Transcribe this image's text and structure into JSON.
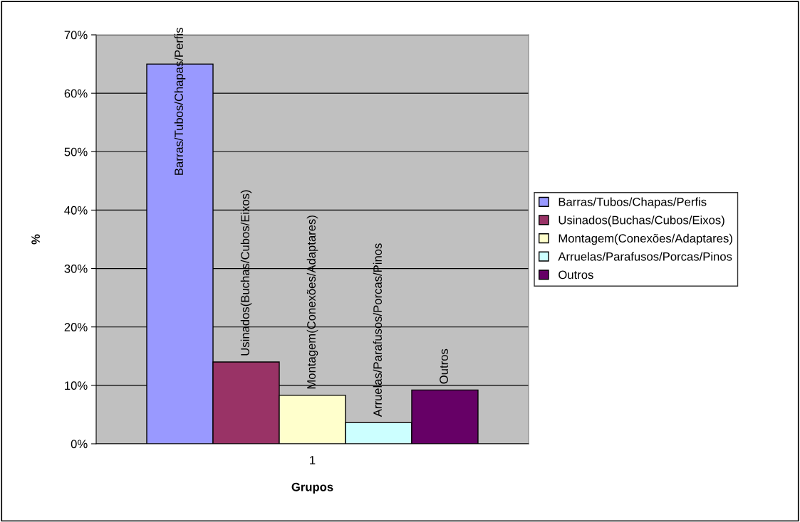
{
  "chart_data": {
    "type": "bar",
    "xlabel": "Grupos",
    "ylabel": "%",
    "categories": [
      "1"
    ],
    "series": [
      {
        "name": "Barras/Tubos/Chapas/Perfis",
        "color": "#9999ff",
        "values": [
          65
        ],
        "value_labels": [
          "Barras/Tubos/Chapas/Perfis"
        ]
      },
      {
        "name": "Usinados(Buchas/Cubos/Eixos)",
        "color": "#993366",
        "values": [
          14
        ],
        "value_labels": [
          "Usinados(Buchas/Cubos/Eixos)"
        ]
      },
      {
        "name": "Montagem(Conexões/Adaptares)",
        "color": "#ffffcc",
        "values": [
          8.3
        ],
        "value_labels": [
          "Montagem(Conexões/Adaptares)"
        ]
      },
      {
        "name": "Arruelas/Parafusos/Porcas/Pinos",
        "color": "#ccffff",
        "values": [
          3.6
        ],
        "value_labels": [
          "Arruelas/Parafusos/Porcas/Pinos"
        ]
      },
      {
        "name": "Outros",
        "color": "#660066",
        "values": [
          9.2
        ],
        "value_labels": [
          "Outros"
        ]
      }
    ],
    "ylim": [
      0,
      70
    ],
    "yticks": [
      {
        "value": 0,
        "label": "0%"
      },
      {
        "value": 10,
        "label": "10%"
      },
      {
        "value": 20,
        "label": "20%"
      },
      {
        "value": 30,
        "label": "30%"
      },
      {
        "value": 40,
        "label": "40%"
      },
      {
        "value": 50,
        "label": "50%"
      },
      {
        "value": 60,
        "label": "60%"
      },
      {
        "value": 70,
        "label": "70%"
      }
    ],
    "grid": "y",
    "legend": "right"
  }
}
